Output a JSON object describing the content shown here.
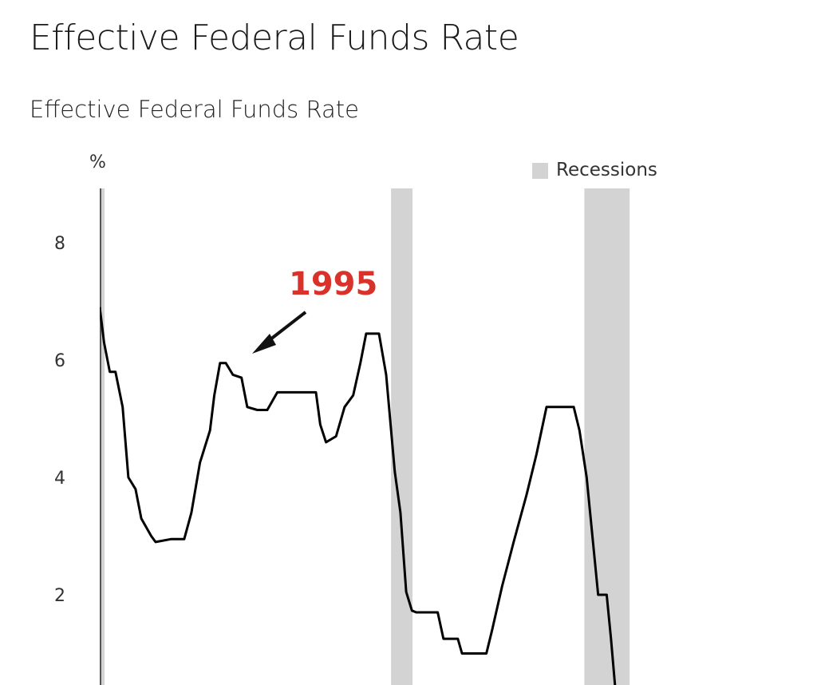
{
  "header": {
    "title": "Effective Federal Funds Rate"
  },
  "chart_data": {
    "type": "line",
    "title": "Effective Federal Funds Rate",
    "ylabel": "%",
    "xlabel": "",
    "ylim": [
      0,
      8.9
    ],
    "xlim": [
      1991.0,
      2025.0
    ],
    "yticks": [
      2,
      4,
      6,
      8
    ],
    "grid": false,
    "legend": {
      "entries": [
        "Recessions"
      ],
      "placement": "top-right"
    },
    "colors": {
      "line": "#000000",
      "recession": "#d3d3d3",
      "annotation": "#d9322b"
    },
    "recessions": [
      [
        1990.55,
        1991.17
      ],
      [
        2001.17,
        2001.92
      ],
      [
        2007.92,
        2009.5
      ]
    ],
    "annotation": {
      "text": "1995",
      "points_to": [
        1995.25,
        5.9
      ]
    },
    "series": [
      {
        "x": [
          1991.0,
          1991.15,
          1991.35,
          1991.55,
          1991.8,
          1992.0,
          1992.25,
          1992.45,
          1992.8,
          1992.95,
          1993.5,
          1993.95,
          1994.2,
          1994.5,
          1994.85,
          1995.0,
          1995.2,
          1995.4,
          1995.65,
          1995.95,
          1996.15,
          1996.5,
          1996.85,
          1997.2,
          1997.5,
          1998.0,
          1998.55,
          1998.7,
          1998.9,
          1999.25,
          1999.55,
          1999.85,
          2000.1,
          2000.3,
          2000.75,
          2001.0,
          2001.3,
          2001.5,
          2001.7,
          2001.9,
          2002.05,
          2002.8,
          2003.0,
          2003.5,
          2003.65,
          2004.5,
          2004.7,
          2005.05,
          2005.45,
          2005.9,
          2006.25,
          2006.6,
          2007.55,
          2007.75,
          2008.0,
          2008.25,
          2008.4,
          2008.7,
          2008.85,
          2009.0
        ],
        "y": [
          6.9,
          6.3,
          5.8,
          5.8,
          5.2,
          4.0,
          3.8,
          3.3,
          3.0,
          2.9,
          2.95,
          2.95,
          3.4,
          4.25,
          4.8,
          5.4,
          5.95,
          5.95,
          5.75,
          5.7,
          5.2,
          5.15,
          5.15,
          5.45,
          5.45,
          5.45,
          5.45,
          4.9,
          4.6,
          4.7,
          5.2,
          5.4,
          5.95,
          6.45,
          6.45,
          5.75,
          4.1,
          3.4,
          2.05,
          1.73,
          1.7,
          1.7,
          1.25,
          1.25,
          1.0,
          1.0,
          1.4,
          2.15,
          2.9,
          3.7,
          4.4,
          5.2,
          5.2,
          4.8,
          4.0,
          2.75,
          2.0,
          2.0,
          1.25,
          0.4
        ]
      }
    ]
  }
}
